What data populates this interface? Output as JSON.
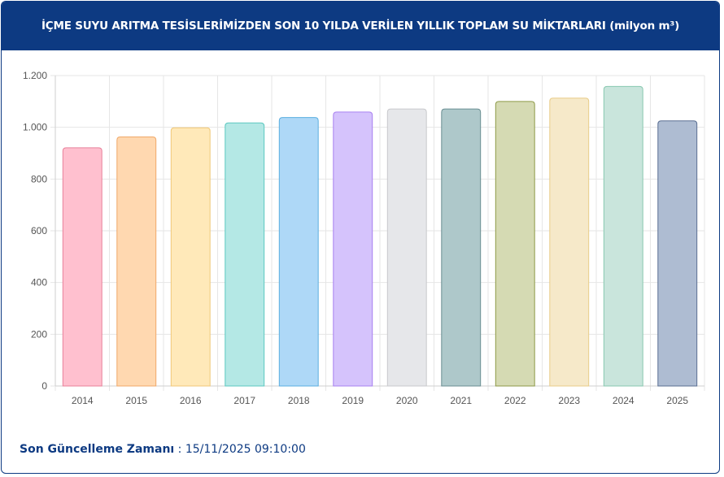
{
  "header": {
    "title": "İÇME SUYU ARITMA TESİSLERİMİZDEN SON 10 YILDA VERİLEN YILLIK TOPLAM SU MİKTARLARI (milyon m³)"
  },
  "footer": {
    "label": "Son Güncelleme Zamanı",
    "separator": " : ",
    "value": "15/11/2025 09:10:00"
  },
  "colors": {
    "header_bg": "#0d3a82",
    "grid": "#e6e6e6"
  },
  "chart_data": {
    "type": "bar",
    "categories": [
      "2014",
      "2015",
      "2016",
      "2017",
      "2018",
      "2019",
      "2020",
      "2021",
      "2022",
      "2023",
      "2024",
      "2025"
    ],
    "values": [
      921,
      963,
      998,
      1017,
      1038,
      1059,
      1071,
      1071,
      1100,
      1113,
      1158,
      1025
    ],
    "ylim": [
      0,
      1200
    ],
    "yticks": [
      0,
      200,
      400,
      600,
      800,
      1000,
      1200
    ],
    "ytick_labels": [
      "0",
      "200",
      "400",
      "600",
      "800",
      "1.000",
      "1.200"
    ],
    "grid": true,
    "legend": false,
    "bar_fills": [
      "#ffc0cf",
      "#ffd8b0",
      "#ffe9b9",
      "#b4e8e5",
      "#aed8f7",
      "#d5c3fc",
      "#e6e7ea",
      "#aec8ca",
      "#d5dab3",
      "#f6e9c9",
      "#c9e5dc",
      "#aebcd2"
    ],
    "bar_strokes": [
      "#e8809a",
      "#f0a868",
      "#f0c878",
      "#5cc8c0",
      "#5aaee0",
      "#a880f0",
      "#c8c9cc",
      "#6a8e92",
      "#8e9a48",
      "#e8cc88",
      "#88c8b0",
      "#5a6e92"
    ]
  }
}
